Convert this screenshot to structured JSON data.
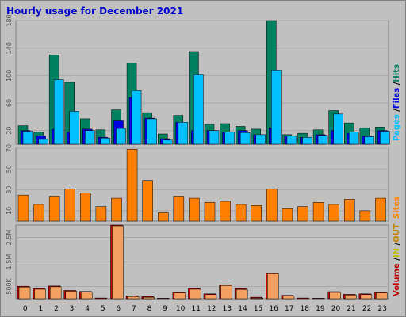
{
  "title": "Hourly usage for December 2021",
  "colors": {
    "pages": "#00c0ff",
    "files": "#0000e0",
    "hits": "#008060",
    "sites": "#ff8000",
    "kbytes": "#ff8000",
    "volume_label": "#c00000",
    "in_label": "#c0c000",
    "out_label": "#c08000",
    "title": "#0000cc"
  },
  "chart_data": [
    {
      "type": "bar",
      "name": "hits-files-pages",
      "categories": [
        "0",
        "1",
        "2",
        "3",
        "4",
        "5",
        "6",
        "7",
        "8",
        "9",
        "10",
        "11",
        "12",
        "13",
        "14",
        "15",
        "16",
        "17",
        "18",
        "19",
        "20",
        "21",
        "22",
        "23"
      ],
      "series": [
        {
          "name": "Hits",
          "values": [
            27,
            18,
            130,
            90,
            37,
            21,
            50,
            118,
            46,
            15,
            42,
            135,
            29,
            30,
            26,
            22,
            180,
            14,
            16,
            21,
            49,
            31,
            24,
            25
          ]
        },
        {
          "name": "Files",
          "values": [
            20,
            12,
            22,
            18,
            22,
            10,
            34,
            68,
            38,
            8,
            32,
            20,
            20,
            18,
            20,
            14,
            24,
            12,
            10,
            14,
            20,
            16,
            12,
            20
          ]
        },
        {
          "name": "Pages",
          "values": [
            19,
            7,
            94,
            48,
            20,
            9,
            23,
            78,
            37,
            6,
            32,
            101,
            20,
            18,
            17,
            14,
            108,
            12,
            10,
            13,
            44,
            18,
            11,
            19
          ]
        }
      ],
      "yticks": [
        "20",
        "60",
        "100",
        "140",
        "180"
      ],
      "ylim": [
        0,
        180
      ],
      "ylabel_parts": [
        "Pages",
        " /",
        "Files",
        " /",
        "Hits"
      ]
    },
    {
      "type": "bar",
      "name": "sites",
      "categories": [
        "0",
        "1",
        "2",
        "3",
        "4",
        "5",
        "6",
        "7",
        "8",
        "9",
        "10",
        "11",
        "12",
        "13",
        "14",
        "15",
        "16",
        "17",
        "18",
        "19",
        "20",
        "21",
        "22",
        "23"
      ],
      "series": [
        {
          "name": "Sites",
          "values": [
            25,
            16,
            24,
            31,
            27,
            14,
            22,
            69,
            39,
            8,
            24,
            22,
            18,
            19,
            16,
            15,
            31,
            12,
            14,
            18,
            16,
            21,
            10,
            22
          ]
        }
      ],
      "yticks": [
        "10",
        "30",
        "50",
        "70"
      ],
      "ylim": [
        0,
        70
      ],
      "ylabel": "Sites"
    },
    {
      "type": "bar",
      "name": "volume",
      "categories": [
        "0",
        "1",
        "2",
        "3",
        "4",
        "5",
        "6",
        "7",
        "8",
        "9",
        "10",
        "11",
        "12",
        "13",
        "14",
        "15",
        "16",
        "17",
        "18",
        "19",
        "20",
        "21",
        "22",
        "23"
      ],
      "series": [
        {
          "name": "Volume",
          "values": [
            510000,
            420000,
            520000,
            340000,
            300000,
            30000,
            3000000,
            120000,
            90000,
            20000,
            270000,
            420000,
            200000,
            570000,
            410000,
            60000,
            1050000,
            140000,
            30000,
            20000,
            290000,
            180000,
            200000,
            270000
          ]
        }
      ],
      "yticks": [
        "500K",
        "1.5M",
        "2.5M"
      ],
      "ylim": [
        0,
        3000000
      ],
      "ylabel_parts": [
        "Volume",
        " /",
        "IN",
        " /",
        "OUT"
      ]
    }
  ],
  "xaxis_labels": [
    "0",
    "1",
    "2",
    "3",
    "4",
    "5",
    "6",
    "7",
    "8",
    "9",
    "10",
    "11",
    "12",
    "13",
    "14",
    "15",
    "16",
    "17",
    "18",
    "19",
    "20",
    "21",
    "22",
    "23"
  ]
}
